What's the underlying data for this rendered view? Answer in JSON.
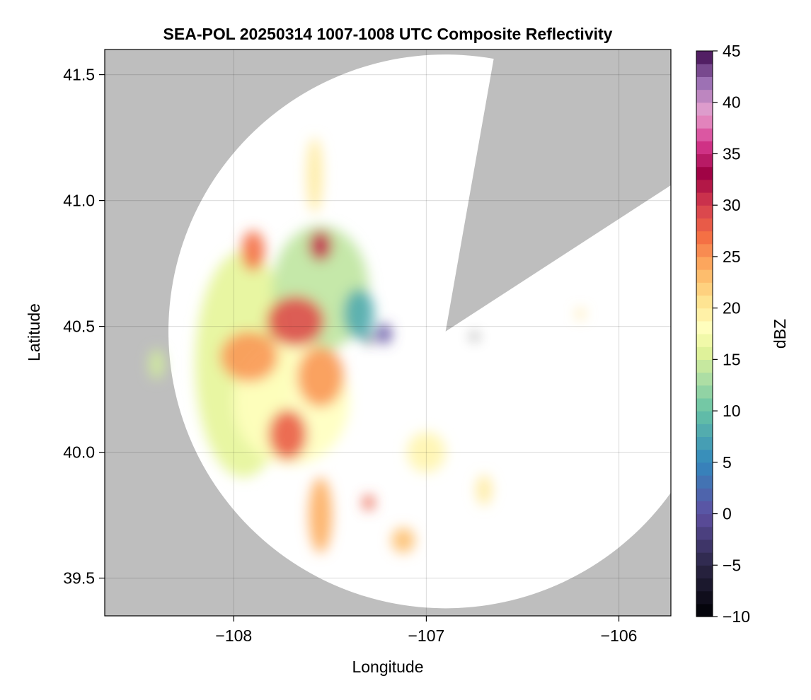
{
  "chart_data": {
    "type": "heatmap",
    "title": "SEA-POL 20250314 1007-1008 UTC Composite Reflectivity",
    "xlabel": "Longitude",
    "ylabel": "Latitude",
    "xlim": [
      -108.67,
      -105.73
    ],
    "ylim": [
      39.35,
      41.6
    ],
    "xticks": [
      -108,
      -107,
      -106
    ],
    "xtick_labels": [
      "−108",
      "−107",
      "−106"
    ],
    "yticks": [
      39.5,
      40.0,
      40.5,
      41.0,
      41.5
    ],
    "ytick_labels": [
      "39.5",
      "40.0",
      "40.5",
      "41.0",
      "41.5"
    ],
    "grid": true,
    "background_color": "#bebebe",
    "radar": {
      "center_lon": -106.9,
      "center_lat": 40.48,
      "range_lat_deg": 1.1,
      "blocked_sectors": [
        {
          "from_az_deg": 10,
          "to_az_deg": 57
        }
      ]
    },
    "colorbar": {
      "label": "dBZ",
      "range": [
        -10,
        45
      ],
      "ticks": [
        -10,
        -5,
        0,
        5,
        10,
        15,
        20,
        25,
        30,
        35,
        40,
        45
      ],
      "tick_labels": [
        "−10",
        "−5",
        "0",
        "5",
        "10",
        "15",
        "20",
        "25",
        "30",
        "35",
        "40",
        "45"
      ],
      "colormap": "Spectral (reversed)"
    },
    "echo_regions": [
      {
        "lon": -107.95,
        "lat": 40.35,
        "rx": 0.25,
        "ry": 0.45,
        "dbz": 16
      },
      {
        "lon": -107.55,
        "lat": 40.65,
        "rx": 0.25,
        "ry": 0.25,
        "dbz": 14
      },
      {
        "lon": -107.7,
        "lat": 40.2,
        "rx": 0.3,
        "ry": 0.25,
        "dbz": 18
      },
      {
        "lon": -107.68,
        "lat": 40.52,
        "rx": 0.15,
        "ry": 0.1,
        "dbz": 29
      },
      {
        "lon": -107.92,
        "lat": 40.38,
        "rx": 0.15,
        "ry": 0.1,
        "dbz": 25
      },
      {
        "lon": -107.55,
        "lat": 40.3,
        "rx": 0.12,
        "ry": 0.12,
        "dbz": 25
      },
      {
        "lon": -107.72,
        "lat": 40.07,
        "rx": 0.1,
        "ry": 0.1,
        "dbz": 28
      },
      {
        "lon": -107.55,
        "lat": 39.75,
        "rx": 0.06,
        "ry": 0.15,
        "dbz": 24
      },
      {
        "lon": -107.9,
        "lat": 40.8,
        "rx": 0.06,
        "ry": 0.08,
        "dbz": 27
      },
      {
        "lon": -107.55,
        "lat": 40.82,
        "rx": 0.06,
        "ry": 0.06,
        "dbz": 31
      },
      {
        "lon": -107.58,
        "lat": 41.1,
        "rx": 0.04,
        "ry": 0.15,
        "dbz": 20
      },
      {
        "lon": -107.35,
        "lat": 40.55,
        "rx": 0.08,
        "ry": 0.1,
        "dbz": 8
      },
      {
        "lon": -107.22,
        "lat": 40.47,
        "rx": 0.04,
        "ry": 0.04,
        "dbz": 0
      },
      {
        "lon": -107.3,
        "lat": 40.45,
        "rx": 0.02,
        "ry": 0.02,
        "dbz": -5
      },
      {
        "lon": -107.0,
        "lat": 40.0,
        "rx": 0.1,
        "ry": 0.08,
        "dbz": 19
      },
      {
        "lon": -107.12,
        "lat": 39.65,
        "rx": 0.06,
        "ry": 0.05,
        "dbz": 23
      },
      {
        "lon": -106.2,
        "lat": 40.55,
        "rx": 0.02,
        "ry": 0.02,
        "dbz": 21
      },
      {
        "lon": -106.75,
        "lat": 40.46,
        "rx": 0.01,
        "ry": 0.01,
        "dbz": -10
      },
      {
        "lon": -108.4,
        "lat": 40.35,
        "rx": 0.04,
        "ry": 0.06,
        "dbz": 15
      },
      {
        "lon": -107.3,
        "lat": 39.8,
        "rx": 0.03,
        "ry": 0.03,
        "dbz": 28
      },
      {
        "lon": -106.7,
        "lat": 39.85,
        "rx": 0.04,
        "ry": 0.06,
        "dbz": 20
      }
    ]
  }
}
